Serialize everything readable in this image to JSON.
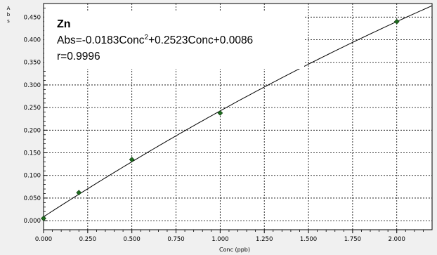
{
  "chart_data": {
    "type": "scatter",
    "title": "Zn",
    "xlabel": "Conc (ppb)",
    "ylabel": "Abs",
    "xlim": [
      0,
      2.2
    ],
    "ylim": [
      -0.02,
      0.48
    ],
    "x_ticks": [
      "0.000",
      "0.250",
      "0.500",
      "0.750",
      "1.000",
      "1.250",
      "1.500",
      "1.750",
      "2.000"
    ],
    "y_ticks": [
      "0.000",
      "0.050",
      "0.100",
      "0.150",
      "0.200",
      "0.250",
      "0.300",
      "0.350",
      "0.400",
      "0.450"
    ],
    "grid": true,
    "series": [
      {
        "type": "scatter",
        "color": "#1f6b1f",
        "marker": "diamond",
        "points": [
          {
            "x": 0.0,
            "y": 0.005
          },
          {
            "x": 0.2,
            "y": 0.062
          },
          {
            "x": 0.5,
            "y": 0.135
          },
          {
            "x": 1.0,
            "y": 0.238
          },
          {
            "x": 2.0,
            "y": 0.44
          }
        ]
      },
      {
        "type": "line",
        "color": "#000000",
        "fit": {
          "a": -0.0183,
          "b": 0.2523,
          "c": 0.0086
        },
        "x_range": [
          0,
          2.2
        ]
      }
    ],
    "annotation": {
      "element": "Zn",
      "equation_prefix": "Abs=-0.0183Conc",
      "equation_sup": "2",
      "equation_suffix": "+0.2523Conc+0.0086",
      "r_value": "r=0.9996"
    }
  }
}
